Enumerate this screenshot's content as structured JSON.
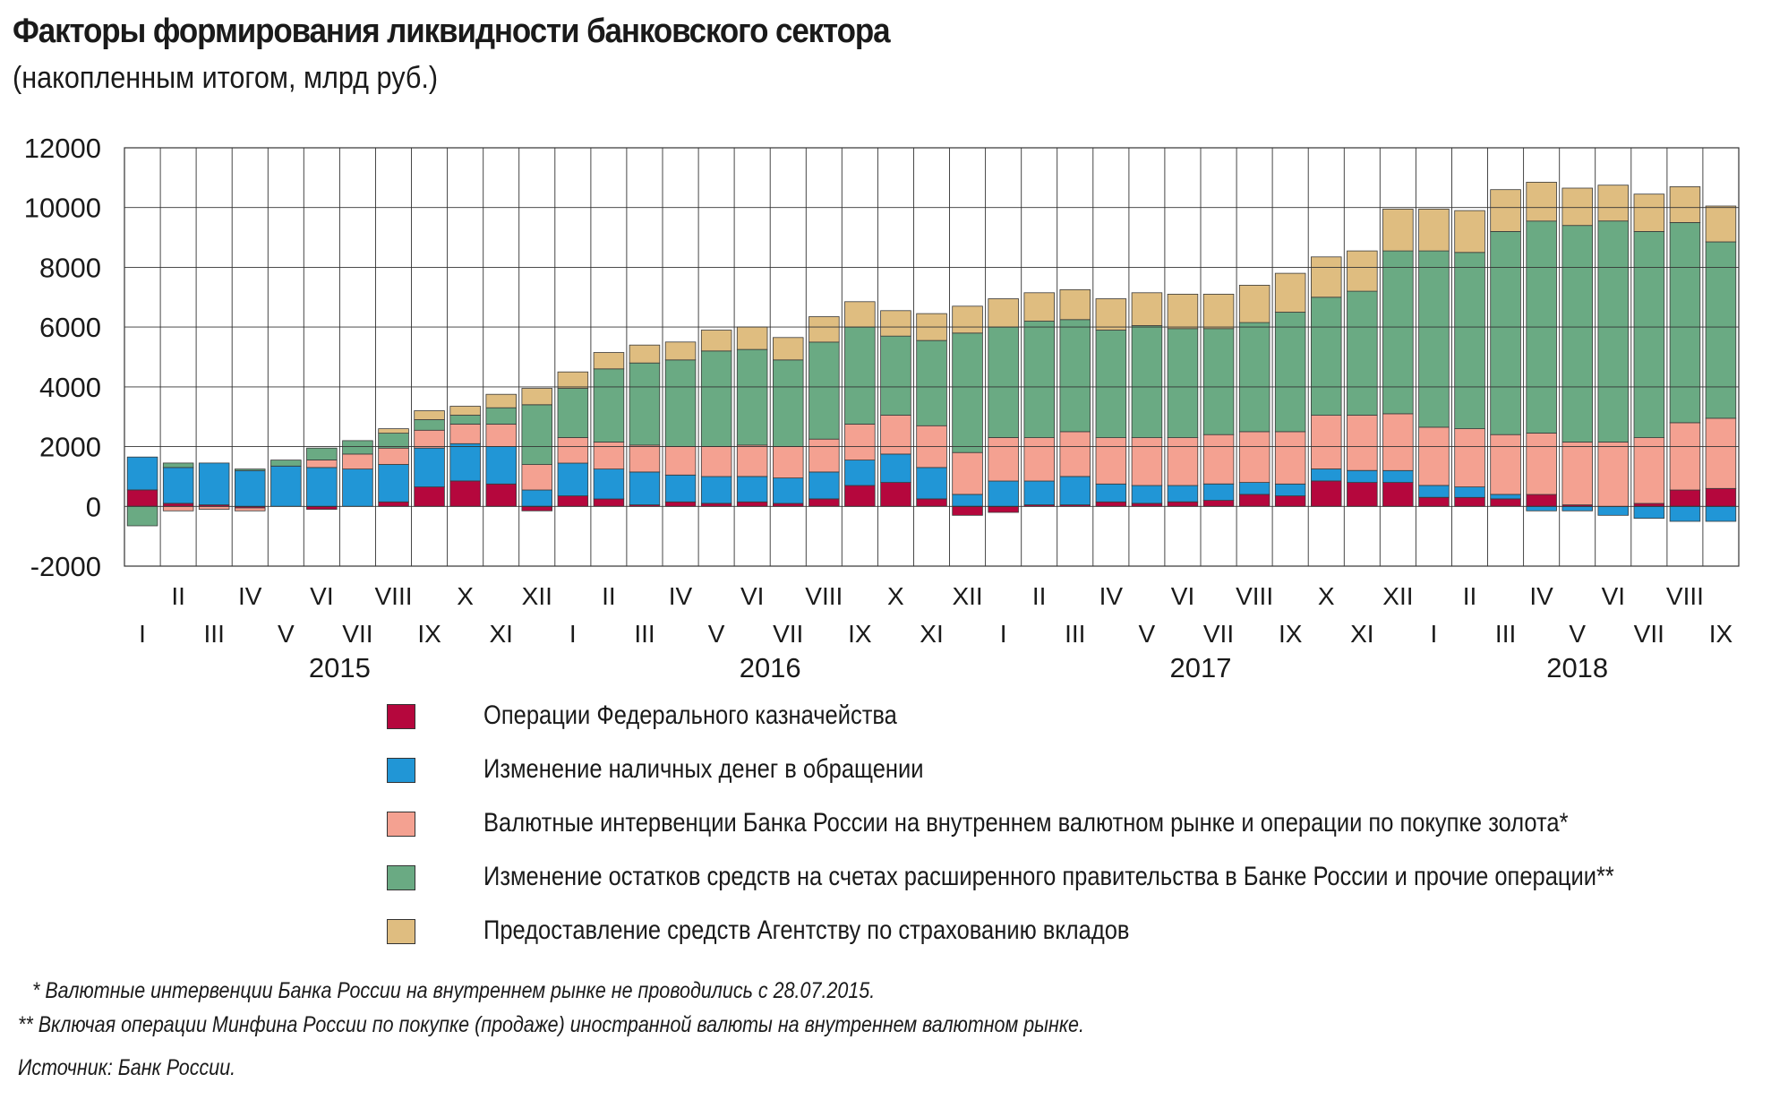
{
  "title": "Факторы формирования ликвидности банковского сектора",
  "subtitle": "(накопленным итогом, млрд руб.)",
  "colors": {
    "treasury": "#b5073d",
    "cash": "#2196d6",
    "fx": "#f4a191",
    "gov": "#6aaa83",
    "dia": "#dfbd80",
    "grid": "#333333"
  },
  "chart_data": {
    "type": "bar",
    "stacked": true,
    "title": "Факторы формирования ликвидности банковского сектора",
    "subtitle": "(накопленным итогом, млрд руб.)",
    "ylim": [
      -2000,
      12000
    ],
    "yticks": [
      "12000",
      "10000",
      "8000",
      "6000",
      "4000",
      "2000",
      "0",
      "-2000"
    ],
    "ytick_values": [
      12000,
      10000,
      8000,
      6000,
      4000,
      2000,
      0,
      -2000
    ],
    "categories": [
      "I",
      "II",
      "III",
      "IV",
      "V",
      "VI",
      "VII",
      "VIII",
      "IX",
      "X",
      "XI",
      "XII",
      "I",
      "II",
      "III",
      "IV",
      "V",
      "VI",
      "VII",
      "VIII",
      "IX",
      "X",
      "XI",
      "XII",
      "I",
      "II",
      "III",
      "IV",
      "V",
      "VI",
      "VII",
      "VIII",
      "IX",
      "X",
      "XI",
      "XII",
      "I",
      "II",
      "III",
      "IV",
      "V",
      "VI",
      "VII",
      "VIII",
      "IX"
    ],
    "years": [
      {
        "label": "2015",
        "start": 0,
        "end": 11
      },
      {
        "label": "2016",
        "start": 12,
        "end": 23
      },
      {
        "label": "2017",
        "start": 24,
        "end": 35
      },
      {
        "label": "2018",
        "start": 36,
        "end": 44
      }
    ],
    "series": [
      {
        "name": "Операции Федерального казначейства",
        "key": "treasury",
        "values": [
          550,
          100,
          50,
          -50,
          0,
          -100,
          0,
          150,
          650,
          850,
          750,
          -150,
          350,
          250,
          50,
          150,
          100,
          150,
          100,
          250,
          700,
          800,
          250,
          -300,
          -200,
          50,
          50,
          150,
          100,
          150,
          200,
          400,
          350,
          850,
          800,
          800,
          300,
          300,
          250,
          400,
          50,
          0,
          100,
          550,
          600
        ]
      },
      {
        "name": "Изменение наличных денег в обращении",
        "key": "cash",
        "values": [
          1100,
          1200,
          1400,
          1200,
          1350,
          1300,
          1250,
          1250,
          1300,
          1250,
          1250,
          550,
          1100,
          1000,
          1100,
          900,
          900,
          850,
          850,
          900,
          850,
          950,
          1050,
          400,
          850,
          800,
          950,
          600,
          600,
          550,
          550,
          400,
          400,
          400,
          400,
          400,
          400,
          350,
          150,
          -150,
          -150,
          -300,
          -400,
          -500,
          -500
        ]
      },
      {
        "name": "Валютные интервенции Банка России на внутреннем валютном рынке и операции по покупке золота*",
        "key": "fx",
        "values": [
          0,
          -150,
          -100,
          -100,
          0,
          250,
          500,
          550,
          600,
          650,
          750,
          850,
          850,
          900,
          900,
          950,
          1000,
          1050,
          1050,
          1100,
          1200,
          1300,
          1400,
          1400,
          1450,
          1450,
          1500,
          1550,
          1600,
          1600,
          1650,
          1700,
          1750,
          1800,
          1850,
          1900,
          1950,
          1950,
          2000,
          2050,
          2100,
          2150,
          2200,
          2250,
          2350
        ]
      },
      {
        "name": "Изменение остатков средств на счетах расширенного правительства в Банке России и прочие операции**",
        "key": "gov",
        "values": [
          -650,
          150,
          0,
          50,
          200,
          400,
          450,
          500,
          350,
          300,
          550,
          2000,
          1650,
          2450,
          2750,
          2900,
          3200,
          3200,
          2900,
          3250,
          3250,
          2650,
          2850,
          4000,
          3700,
          3900,
          3750,
          3600,
          3750,
          3650,
          3550,
          3650,
          4000,
          3950,
          4150,
          5450,
          5900,
          5900,
          6800,
          7100,
          7250,
          7400,
          6900,
          6700,
          5900
        ]
      },
      {
        "name": "Предоставление средств Агентству по страхованию вкладов",
        "key": "dia",
        "values": [
          0,
          0,
          0,
          0,
          0,
          0,
          0,
          150,
          300,
          300,
          450,
          550,
          550,
          550,
          600,
          600,
          700,
          750,
          750,
          850,
          850,
          850,
          900,
          900,
          950,
          950,
          1000,
          1050,
          1100,
          1150,
          1150,
          1250,
          1300,
          1350,
          1350,
          1400,
          1400,
          1400,
          1400,
          1300,
          1250,
          1200,
          1250,
          1200,
          1200
        ]
      }
    ]
  },
  "legend": [
    {
      "label": "Операции Федерального казначейства",
      "key": "treasury"
    },
    {
      "label": "Изменение наличных денег в обращении",
      "key": "cash"
    },
    {
      "label": "Валютные интервенции Банка России на внутреннем валютном рынке и операции по покупке золота*",
      "key": "fx"
    },
    {
      "label": "Изменение остатков средств на счетах расширенного правительства в Банке России и прочие операции**",
      "key": "gov"
    },
    {
      "label": "Предоставление средств Агентству по страхованию вкладов",
      "key": "dia"
    }
  ],
  "footnotes": {
    "note1": "* Валютные интервенции Банка России на внутреннем рынке не проводились с 28.07.2015.",
    "note2": "** Включая операции Минфина России по покупке (продаже) иностранной валюты на внутреннем валютном рынке.",
    "source": "Источник: Банк России."
  }
}
